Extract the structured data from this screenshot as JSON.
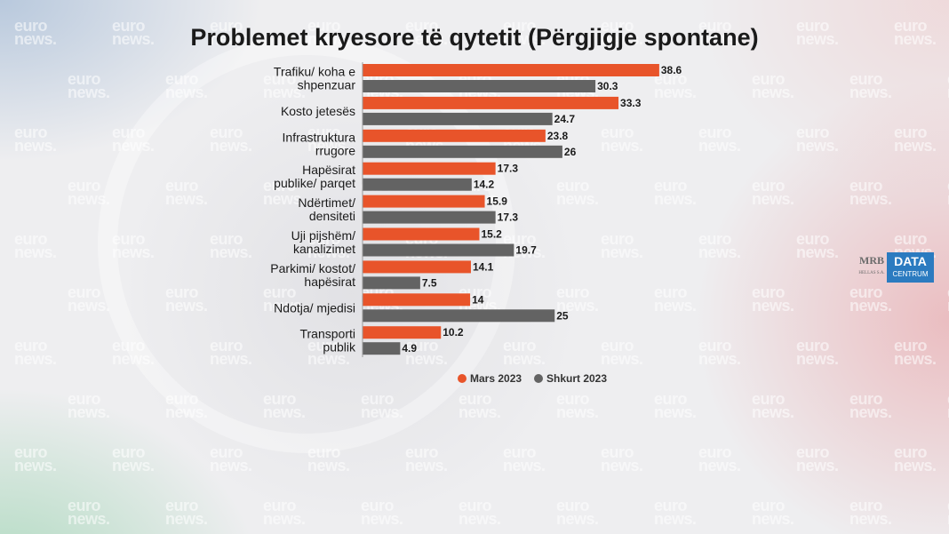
{
  "watermark": {
    "line1": "euro",
    "line2": "news."
  },
  "logo": {
    "left_text": "MRB",
    "left_sub": "HELLAS S.A.",
    "right_top": "DATA",
    "right_bottom": "CENTRUM",
    "color": "#2b7bc0"
  },
  "chart_data": {
    "type": "bar",
    "orientation": "horizontal",
    "title": "Problemet kryesore të qytetit (Përgjigje spontane)",
    "categories": [
      [
        "Trafiku/ koha e",
        "shpenzuar"
      ],
      [
        "Kosto jetesës"
      ],
      [
        "Infrastruktura",
        "rrugore"
      ],
      [
        "Hapësirat",
        "publike/ parqet"
      ],
      [
        "Ndërtimet/",
        "densiteti"
      ],
      [
        "Uji pijshëm/",
        "kanalizimet"
      ],
      [
        "Parkimi/ kostot/",
        "hapësirat"
      ],
      [
        "Ndotja/ mjedisi"
      ],
      [
        "Transporti",
        "publik"
      ]
    ],
    "series": [
      {
        "name": "Mars 2023",
        "color": "#e8542a",
        "values": [
          38.6,
          33.3,
          23.8,
          17.3,
          15.9,
          15.2,
          14.1,
          14,
          10.2
        ]
      },
      {
        "name": "Shkurt 2023",
        "color": "#636363",
        "values": [
          30.3,
          24.7,
          26,
          14.2,
          17.3,
          19.7,
          7.5,
          25,
          4.9
        ]
      }
    ],
    "value_labels": [
      [
        "38.6",
        "33.3",
        "23.8",
        "17.3",
        "15.9",
        "15.2",
        "14.1",
        "14",
        "10.2"
      ],
      [
        "30.3",
        "24.7",
        "26",
        "14.2",
        "17.3",
        "19.7",
        "7.5",
        "25",
        "4.9"
      ]
    ],
    "xlim": [
      0,
      40
    ],
    "legend": "bottom"
  }
}
